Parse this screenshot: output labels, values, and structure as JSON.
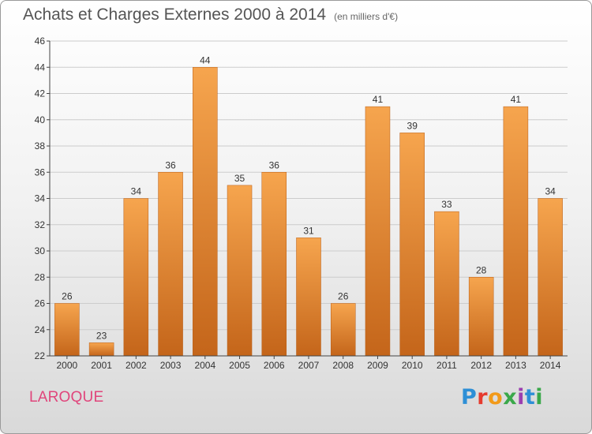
{
  "header": {
    "title": "Achats et Charges Externes 2000 à 2014",
    "unit": "(en milliers d'€)"
  },
  "footer": {
    "commune": "LAROQUE",
    "logo_text": "Proxiti",
    "logo_colors": [
      "#2e8fd6",
      "#e63b2e",
      "#f29a1a",
      "#3aa84a",
      "#9b3fb0",
      "#2e8fd6",
      "#3aa84a"
    ]
  },
  "colors": {
    "bar_top": "#f6a54e",
    "bar_bottom": "#c4651a",
    "axis": "#444444",
    "grid": "#cccccc",
    "text": "#333333"
  },
  "chart_data": {
    "type": "bar",
    "categories": [
      "2000",
      "2001",
      "2002",
      "2003",
      "2004",
      "2005",
      "2006",
      "2007",
      "2008",
      "2009",
      "2010",
      "2011",
      "2012",
      "2013",
      "2014"
    ],
    "values": [
      26,
      23,
      34,
      36,
      44,
      35,
      36,
      31,
      26,
      41,
      39,
      33,
      28,
      41,
      34
    ],
    "ylim": [
      22,
      46
    ],
    "yticks": [
      22,
      24,
      26,
      28,
      30,
      32,
      34,
      36,
      38,
      40,
      42,
      44,
      46
    ],
    "grid": true,
    "data_labels": true
  }
}
